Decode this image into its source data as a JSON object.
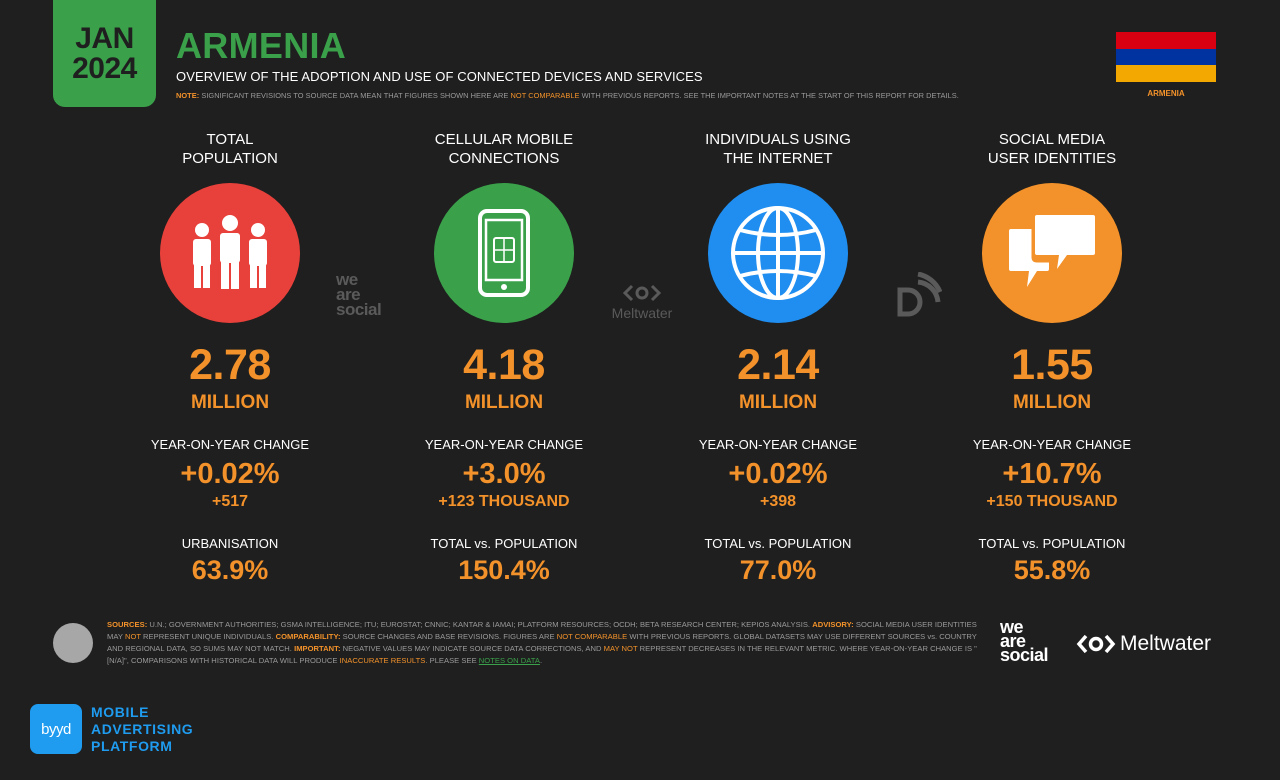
{
  "header": {
    "month": "JAN",
    "year": "2024",
    "title": "ARMENIA",
    "subtitle": "OVERVIEW OF THE ADOPTION AND USE OF CONNECTED DEVICES AND SERVICES",
    "note_key": "NOTE:",
    "note_a": " SIGNIFICANT REVISIONS TO SOURCE DATA MEAN THAT FIGURES SHOWN HERE ARE ",
    "note_hl": "NOT COMPARABLE",
    "note_b": " WITH PREVIOUS REPORTS. SEE THE IMPORTANT NOTES AT THE START OF THIS REPORT FOR DETAILS.",
    "flag_label": "ARMENIA",
    "flag_colors": [
      "#d90012",
      "#0033a0",
      "#f2a800"
    ]
  },
  "colors": {
    "accent": "#f3922a",
    "brand_green": "#3aa14a",
    "background": "#1f1f1f"
  },
  "stats": [
    {
      "heading_1": "TOTAL",
      "heading_2": "POPULATION",
      "icon": "people-icon",
      "icon_color": "#e8403a",
      "value": "2.78",
      "unit": "MILLION",
      "change_label": "YEAR-ON-YEAR CHANGE",
      "change_pct": "+0.02%",
      "change_abs": "+517",
      "extra_label": "URBANISATION",
      "extra_value": "63.9%"
    },
    {
      "heading_1": "CELLULAR MOBILE",
      "heading_2": "CONNECTIONS",
      "icon": "mobile-phone-icon",
      "icon_color": "#3aa14a",
      "value": "4.18",
      "unit": "MILLION",
      "change_label": "YEAR-ON-YEAR CHANGE",
      "change_pct": "+3.0%",
      "change_abs": "+123 THOUSAND",
      "extra_label": "TOTAL vs. POPULATION",
      "extra_value": "150.4%"
    },
    {
      "heading_1": "INDIVIDUALS USING",
      "heading_2": "THE INTERNET",
      "icon": "globe-icon",
      "icon_color": "#1f8ef0",
      "value": "2.14",
      "unit": "MILLION",
      "change_label": "YEAR-ON-YEAR CHANGE",
      "change_pct": "+0.02%",
      "change_abs": "+398",
      "extra_label": "TOTAL vs. POPULATION",
      "extra_value": "77.0%"
    },
    {
      "heading_1": "SOCIAL MEDIA",
      "heading_2": "USER IDENTITIES",
      "icon": "chat-bubbles-icon",
      "icon_color": "#f3922a",
      "value": "1.55",
      "unit": "MILLION",
      "change_label": "YEAR-ON-YEAR CHANGE",
      "change_pct": "+10.7%",
      "change_abs": "+150 THOUSAND",
      "extra_label": "TOTAL vs. POPULATION",
      "extra_value": "55.8%"
    }
  ],
  "watermarks": {
    "we": "we",
    "are": "are",
    "social": "social",
    "meltwater": "Meltwater"
  },
  "sources": {
    "k1": "SOURCES:",
    "t1": " U.N.; GOVERNMENT AUTHORITIES; GSMA INTELLIGENCE; ITU; EUROSTAT; CNNIC; KANTAR & IAMAI; PLATFORM RESOURCES; OCDH; BETA RESEARCH CENTER; KEPIOS ANALYSIS. ",
    "k2": "ADVISORY:",
    "t2": " SOCIAL MEDIA USER IDENTITIES MAY ",
    "h1": "NOT",
    "t3": " REPRESENT UNIQUE INDIVIDUALS. ",
    "k3": "COMPARABILITY:",
    "t4": " SOURCE CHANGES AND BASE REVISIONS. FIGURES ARE ",
    "h2": "NOT COMPARABLE",
    "t5": " WITH PREVIOUS REPORTS. GLOBAL DATASETS MAY USE DIFFERENT SOURCES vs. COUNTRY AND REGIONAL DATA, SO SUMS MAY NOT MATCH. ",
    "k4": "IMPORTANT:",
    "t6": " NEGATIVE VALUES MAY INDICATE SOURCE DATA CORRECTIONS, AND ",
    "h3": "MAY NOT",
    "t7": " REPRESENT DECREASES IN THE RELEVANT METRIC. WHERE YEAR-ON-YEAR CHANGE IS \"[N/A]\", COMPARISONS WITH HISTORICAL DATA WILL PRODUCE ",
    "h4": "INACCURATE RESULTS",
    "t8": ". PLEASE SEE ",
    "link": "NOTES ON DATA",
    "t9": "."
  },
  "footer": {
    "we": "we",
    "are": "are",
    "social": "social",
    "meltwater": "Meltwater",
    "byyd_logo": "byyd",
    "byyd_line1": "MOBILE",
    "byyd_line2": "ADVERTISING",
    "byyd_line3": "PLATFORM"
  }
}
